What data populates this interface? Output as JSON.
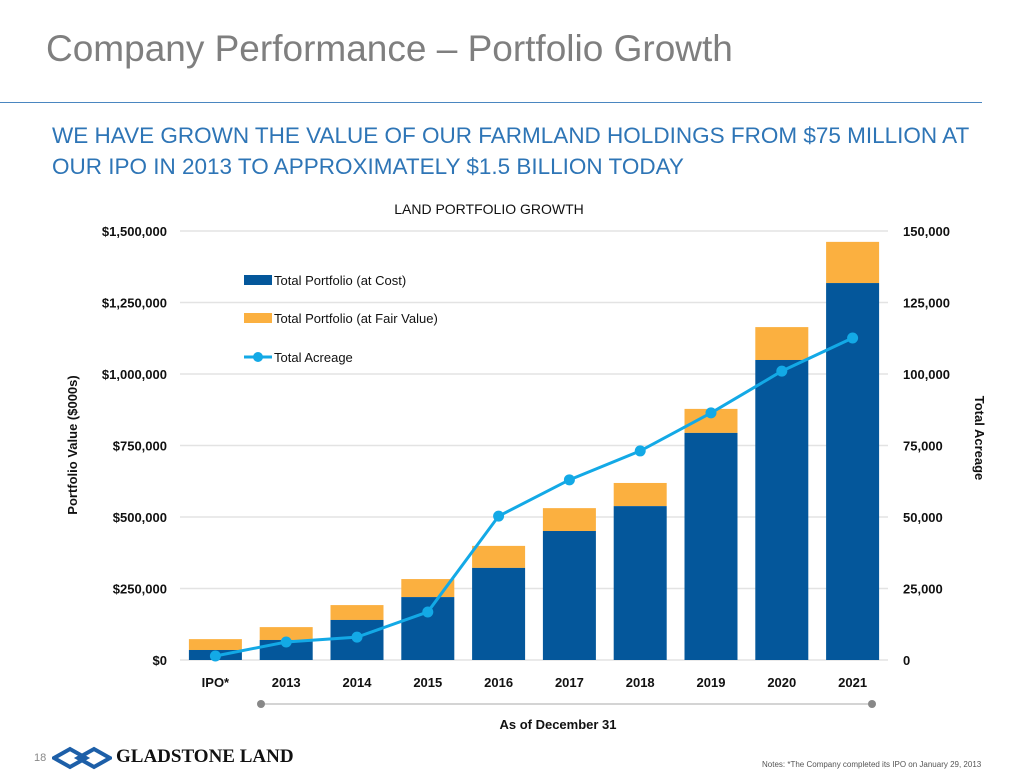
{
  "title": "Company Performance – Portfolio Growth",
  "headline": "WE HAVE GROWN THE VALUE OF OUR FARMLAND HOLDINGS FROM $75 MILLION AT OUR IPO IN 2013 TO APPROXIMATELY $1.5 BILLION TODAY",
  "footer": {
    "page_number": "18",
    "logo_text": "GLADSTONE LAND",
    "note": "Notes: *The Company completed its IPO on January 29, 2013"
  },
  "chart_data": {
    "type": "bar",
    "title": "LAND PORTFOLIO GROWTH",
    "xlabel": "As of December 31",
    "ylabel": "Portfolio Value ($000s)",
    "y2label": "Total Acreage",
    "categories": [
      "IPO*",
      "2013",
      "2014",
      "2015",
      "2016",
      "2017",
      "2018",
      "2019",
      "2020",
      "2021"
    ],
    "ylim": [
      0,
      1500000
    ],
    "y2lim": [
      0,
      150000
    ],
    "yticks": [
      "$0",
      "$250,000",
      "$500,000",
      "$750,000",
      "$1,000,000",
      "$1,250,000",
      "$1,500,000"
    ],
    "y2ticks": [
      "0",
      "25,000",
      "50,000",
      "75,000",
      "100,000",
      "125,000",
      "150,000"
    ],
    "grid": true,
    "legend": "top-left",
    "series": [
      {
        "name": "Total Portfolio (at Cost)",
        "type": "bar",
        "color": "#04579b",
        "values": [
          35000,
          70000,
          140000,
          220000,
          322000,
          451000,
          538000,
          794000,
          1049000,
          1318000
        ]
      },
      {
        "name": "Total Portfolio (at Fair Value)",
        "type": "bar",
        "color": "#fbb040",
        "values": [
          73000,
          115000,
          192000,
          283000,
          399000,
          531000,
          619000,
          878000,
          1164000,
          1462000
        ]
      },
      {
        "name": "Total Acreage",
        "type": "line",
        "axis": "right",
        "color": "#13a9e6",
        "values": [
          1400,
          6300,
          8000,
          16800,
          50300,
          63000,
          73100,
          86400,
          101000,
          112600
        ]
      }
    ]
  }
}
